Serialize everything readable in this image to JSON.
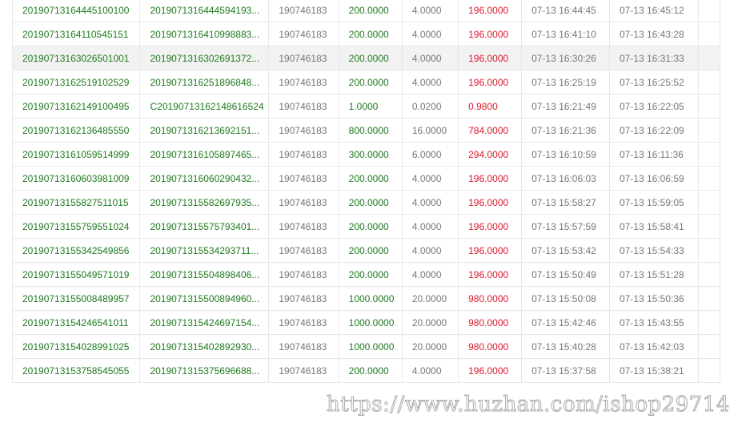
{
  "colors": {
    "id": "#1f7a1f",
    "amount": "#1f7a1f",
    "net": "#e0182b",
    "muted": "#777777"
  },
  "highlighted_row": 2,
  "rows": [
    [
      "20190713164445100100",
      "2019071316444594193...",
      "190746183",
      "200.0000",
      "4.0000",
      "196.0000",
      "07-13 16:44:45",
      "07-13 16:45:12"
    ],
    [
      "20190713164110545151",
      "2019071316410998883...",
      "190746183",
      "200.0000",
      "4.0000",
      "196.0000",
      "07-13 16:41:10",
      "07-13 16:43:28"
    ],
    [
      "20190713163026501001",
      "2019071316302691372...",
      "190746183",
      "200.0000",
      "4.0000",
      "196.0000",
      "07-13 16:30:26",
      "07-13 16:31:33"
    ],
    [
      "20190713162519102529",
      "2019071316251896848...",
      "190746183",
      "200.0000",
      "4.0000",
      "196.0000",
      "07-13 16:25:19",
      "07-13 16:25:52"
    ],
    [
      "20190713162149100495",
      "C20190713162148616524",
      "190746183",
      "1.0000",
      "0.0200",
      "0.9800",
      "07-13 16:21:49",
      "07-13 16:22:05"
    ],
    [
      "20190713162136485550",
      "2019071316213692151...",
      "190746183",
      "800.0000",
      "16.0000",
      "784.0000",
      "07-13 16:21:36",
      "07-13 16:22:09"
    ],
    [
      "20190713161059514999",
      "2019071316105897465...",
      "190746183",
      "300.0000",
      "6.0000",
      "294.0000",
      "07-13 16:10:59",
      "07-13 16:11:36"
    ],
    [
      "20190713160603981009",
      "2019071316060290432...",
      "190746183",
      "200.0000",
      "4.0000",
      "196.0000",
      "07-13 16:06:03",
      "07-13 16:06:59"
    ],
    [
      "20190713155827511015",
      "2019071315582697935...",
      "190746183",
      "200.0000",
      "4.0000",
      "196.0000",
      "07-13 15:58:27",
      "07-13 15:59:05"
    ],
    [
      "20190713155759551024",
      "2019071315575793401...",
      "190746183",
      "200.0000",
      "4.0000",
      "196.0000",
      "07-13 15:57:59",
      "07-13 15:58:41"
    ],
    [
      "20190713155342549856",
      "2019071315534293711...",
      "190746183",
      "200.0000",
      "4.0000",
      "196.0000",
      "07-13 15:53:42",
      "07-13 15:54:33"
    ],
    [
      "20190713155049571019",
      "2019071315504898406...",
      "190746183",
      "200.0000",
      "4.0000",
      "196.0000",
      "07-13 15:50:49",
      "07-13 15:51:28"
    ],
    [
      "20190713155008489957",
      "2019071315500894960...",
      "190746183",
      "1000.0000",
      "20.0000",
      "980.0000",
      "07-13 15:50:08",
      "07-13 15:50:36"
    ],
    [
      "20190713154246541011",
      "2019071315424697154...",
      "190746183",
      "1000.0000",
      "20.0000",
      "980.0000",
      "07-13 15:42:46",
      "07-13 15:43:55"
    ],
    [
      "20190713154028991025",
      "2019071315402892930...",
      "190746183",
      "1000.0000",
      "20.0000",
      "980.0000",
      "07-13 15:40:28",
      "07-13 15:42:03"
    ],
    [
      "20190713153758545055",
      "2019071315375696688...",
      "190746183",
      "200.0000",
      "4.0000",
      "196.0000",
      "07-13 15:37:58",
      "07-13 15:38:21"
    ]
  ],
  "watermark": "https://www.huzhan.com/ishop29714"
}
